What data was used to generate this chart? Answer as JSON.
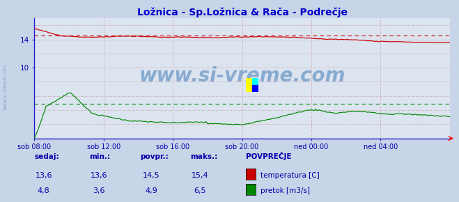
{
  "title": "Ložnica - Sp.Ložnica & Rača - Podrečje",
  "title_color": "#0000cc",
  "bg_color": "#c8d4e8",
  "plot_bg_color": "#dce4f0",
  "grid_color": "#c09090",
  "axis_color": "#2222cc",
  "text_color": "#0000aa",
  "watermark": "www.si-vreme.com",
  "xlim": [
    0,
    288
  ],
  "ylim": [
    0,
    17
  ],
  "xtick_labels": [
    "sob 08:00",
    "sob 12:00",
    "sob 16:00",
    "sob 20:00",
    "ned 00:00",
    "ned 04:00"
  ],
  "xtick_positions": [
    0,
    48,
    96,
    144,
    192,
    240
  ],
  "temp_color": "#cc0000",
  "flow_color": "#008800",
  "temp_avg": 14.5,
  "flow_avg": 4.9,
  "sedaj_temp": "13,6",
  "min_temp": "13,6",
  "povpr_temp": "14,5",
  "maks_temp": "15,4",
  "sedaj_flow": "4,8",
  "min_flow": "3,6",
  "povpr_flow": "4,9",
  "maks_flow": "6,5"
}
